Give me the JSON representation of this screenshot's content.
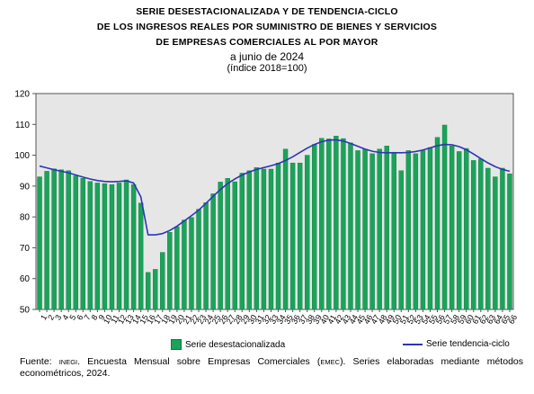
{
  "title": {
    "line1": "SERIE DESESTACIONALIZADA Y DE TENDENCIA-CICLO",
    "line2": "DE LOS INGRESOS REALES POR SUMINISTRO DE BIENES Y SERVICIOS",
    "line3": "DE EMPRESAS COMERCIALES AL POR MAYOR",
    "line4": "a junio de 2024",
    "line5": "(índice 2018=100)"
  },
  "legend": {
    "bars": "Serie desestacionalizada",
    "line": "Serie tendencia-ciclo"
  },
  "source": {
    "label": "Fuente:",
    "inegi": "INEGI",
    "part1": ". Encuesta Mensual sobre Empresas Comerciales (",
    "emec": "EMEC",
    "part2": "). Series elaboradas mediante métodos econométricos, 2024."
  },
  "colors": {
    "bar_fill": "#1aa35a",
    "bar_edge": "#0b7a3e",
    "trend_line": "#2d36b4",
    "plot_bg": "#e6e6e6"
  },
  "chart_data": {
    "type": "bar",
    "ylim": [
      50,
      120
    ],
    "yticks": [
      50,
      60,
      70,
      80,
      90,
      100,
      110,
      120
    ],
    "grid": false,
    "legend_position": "bottom",
    "categories": [
      "1",
      "2",
      "3",
      "4",
      "5",
      "6",
      "7",
      "8",
      "9",
      "10",
      "11",
      "12",
      "13",
      "14",
      "15",
      "16",
      "17",
      "18",
      "19",
      "20",
      "21",
      "22",
      "23",
      "24",
      "25",
      "26",
      "27",
      "28",
      "29",
      "30",
      "31",
      "32",
      "33",
      "34",
      "35",
      "36",
      "37",
      "38",
      "39",
      "40",
      "41",
      "42",
      "43",
      "44",
      "45",
      "46",
      "47",
      "48",
      "49",
      "50",
      "51",
      "52",
      "53",
      "54",
      "55",
      "56",
      "57",
      "58",
      "59",
      "60",
      "61",
      "62",
      "63",
      "64",
      "65",
      "66"
    ],
    "series": [
      {
        "name": "Serie desestacionalizada",
        "type": "bar",
        "values": [
          93.0,
          94.8,
          95.6,
          95.3,
          95.0,
          93.3,
          92.5,
          91.5,
          91.0,
          90.8,
          90.5,
          91.0,
          92.0,
          90.5,
          84.5,
          62.0,
          63.0,
          68.5,
          75.0,
          76.8,
          79.0,
          79.8,
          82.5,
          84.6,
          87.5,
          91.3,
          92.5,
          91.4,
          94.2,
          95.0,
          96.0,
          95.5,
          95.5,
          97.5,
          102.0,
          97.5,
          97.5,
          100.0,
          103.5,
          105.5,
          105.3,
          106.2,
          105.4,
          104.0,
          101.5,
          102.0,
          100.5,
          102.0,
          103.0,
          101.0,
          95.0,
          101.5,
          100.5,
          101.5,
          102.5,
          105.8,
          109.8,
          103.0,
          101.2,
          102.2,
          98.3,
          98.8,
          95.8,
          93.0,
          95.8,
          94.0
        ]
      },
      {
        "name": "Serie tendencia-ciclo",
        "type": "line",
        "values": [
          96.5,
          95.9,
          95.3,
          94.8,
          94.3,
          93.6,
          92.9,
          92.3,
          91.8,
          91.5,
          91.4,
          91.5,
          91.7,
          91.0,
          86.5,
          74.2,
          74.2,
          74.6,
          75.6,
          77.0,
          78.7,
          80.4,
          82.2,
          84.4,
          86.7,
          88.9,
          90.8,
          92.3,
          93.6,
          94.6,
          95.4,
          96.0,
          96.6,
          97.3,
          98.3,
          99.5,
          100.9,
          102.3,
          103.5,
          104.4,
          104.9,
          105.0,
          104.6,
          103.8,
          102.9,
          102.0,
          101.3,
          100.9,
          100.8,
          100.8,
          100.8,
          100.9,
          101.2,
          101.7,
          102.4,
          103.1,
          103.5,
          103.4,
          102.8,
          101.8,
          100.4,
          98.9,
          97.5,
          96.3,
          95.4,
          94.8
        ]
      }
    ]
  }
}
